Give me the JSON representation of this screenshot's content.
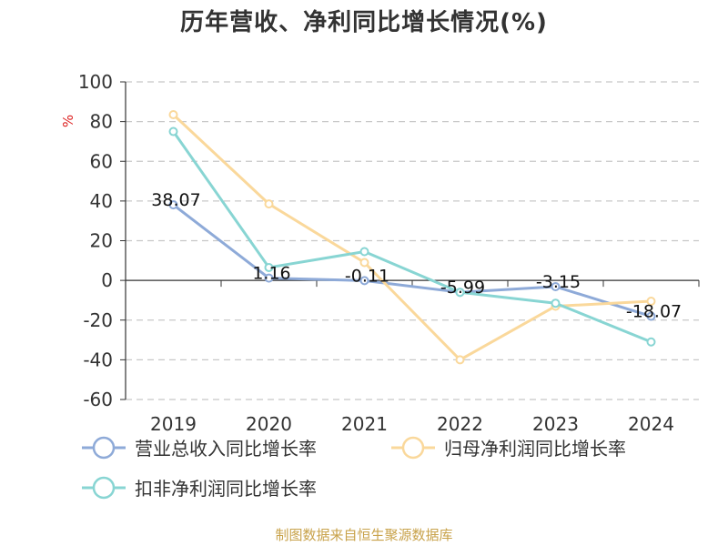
{
  "title": "历年营收、净利同比增长情况(%)",
  "source": "制图数据来自恒生聚源数据库",
  "chart_data": {
    "type": "line",
    "title": "历年营收、净利同比增长情况(%)",
    "ylabel": "%",
    "xlabel": "",
    "categories": [
      "2019",
      "2020",
      "2021",
      "2022",
      "2023",
      "2024"
    ],
    "ylim": [
      -60,
      100
    ],
    "yticks": [
      100,
      80,
      60,
      40,
      20,
      0,
      -20,
      -40,
      -60
    ],
    "grid": true,
    "legend_position": "bottom",
    "series": [
      {
        "name": "营业总收入同比增长率",
        "color": "#8eaad8",
        "values": [
          38.07,
          1.16,
          -0.11,
          -5.99,
          -3.15,
          -18.07
        ],
        "labels": [
          "38.07",
          "1.16",
          "-0.11",
          "-5.99",
          "-3.15",
          "-18.07"
        ]
      },
      {
        "name": "归母净利润同比增长率",
        "color": "#fad89b",
        "values": [
          83.5,
          38.5,
          9.0,
          -40.0,
          -13.0,
          -10.5
        ]
      },
      {
        "name": "扣非净利润同比增长率",
        "color": "#88d5d3",
        "values": [
          75.0,
          6.5,
          14.5,
          -6.0,
          -11.5,
          -31.0
        ]
      }
    ]
  }
}
